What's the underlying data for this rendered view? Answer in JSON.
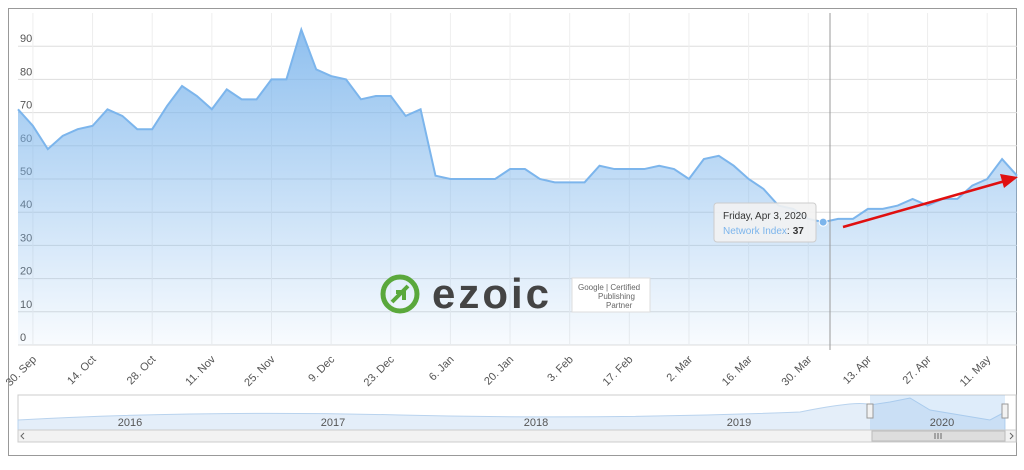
{
  "chart_data": {
    "type": "area",
    "categories": [
      null,
      "30. Sep",
      null,
      null,
      null,
      "14. Oct",
      null,
      null,
      null,
      "28. Oct",
      null,
      null,
      null,
      "11. Nov",
      null,
      null,
      null,
      "25. Nov",
      null,
      null,
      null,
      "9. Dec",
      null,
      null,
      null,
      "23. Dec",
      null,
      null,
      null,
      "6. Jan",
      null,
      null,
      null,
      "20. Jan",
      null,
      null,
      null,
      "3. Feb",
      null,
      null,
      null,
      "17. Feb",
      null,
      null,
      null,
      "2. Mar",
      null,
      null,
      null,
      "16. Mar",
      null,
      null,
      null,
      "30. Mar",
      null,
      null,
      null,
      "13. Apr",
      null,
      null,
      null,
      "27. Apr",
      null,
      null,
      null,
      "11. May",
      null,
      null
    ],
    "series": [
      {
        "name": "Network Index",
        "color": "#7cb5ec",
        "values": [
          71,
          66,
          59,
          63,
          65,
          66,
          71,
          69,
          65,
          65,
          72,
          78,
          75,
          71,
          77,
          74,
          74,
          80,
          80,
          95,
          83,
          81,
          80,
          74,
          75,
          75,
          69,
          71,
          51,
          50,
          50,
          50,
          50,
          53,
          53,
          50,
          49,
          49,
          49,
          54,
          53,
          53,
          53,
          54,
          53,
          50,
          56,
          57,
          54,
          50,
          47,
          42,
          41,
          38,
          37,
          38,
          38,
          41,
          41,
          42,
          44,
          42,
          44,
          44,
          48,
          50,
          56,
          51
        ]
      }
    ],
    "ylim": [
      0,
      100
    ],
    "yticks": [
      0,
      10,
      20,
      30,
      40,
      50,
      60,
      70,
      80,
      90
    ],
    "grid": true,
    "tooltip": {
      "date": "Friday, Apr 3, 2020",
      "separator": ":"
    }
  },
  "navigator": {
    "labels": [
      "2016",
      "2017",
      "2018",
      "2019",
      "2020"
    ]
  },
  "watermark": {
    "brand": "ezoic",
    "badge": [
      "Google | Certified",
      "Publishing",
      "Partner"
    ]
  }
}
